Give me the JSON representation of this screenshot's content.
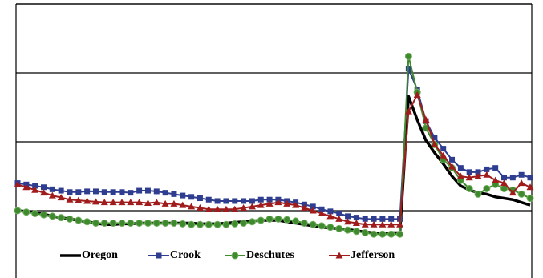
{
  "chart_data": {
    "type": "line",
    "categories": [
      null,
      null,
      null,
      null,
      null,
      null,
      null,
      null,
      null,
      null,
      null,
      null,
      null,
      null,
      null,
      null,
      null,
      null,
      null,
      null,
      null,
      null,
      null,
      null,
      null,
      null,
      null,
      null,
      null,
      null,
      null,
      null,
      null,
      null,
      null,
      null,
      null,
      null,
      null,
      null,
      null,
      null,
      null,
      null,
      null,
      null,
      null,
      null,
      null,
      null,
      null,
      null,
      null,
      null,
      null,
      null,
      null,
      null,
      null,
      null
    ],
    "ylim": [
      0,
      20
    ],
    "yticks": [
      0,
      5,
      10,
      15,
      20
    ],
    "grid": true,
    "legend": "bottom",
    "series": [
      {
        "name": "Oregon",
        "color": "#000000",
        "marker": "none",
        "values": [
          5.0,
          4.95,
          4.85,
          4.75,
          4.6,
          4.5,
          4.4,
          4.3,
          4.2,
          4.1,
          4.0,
          4.0,
          4.05,
          4.05,
          4.1,
          4.1,
          4.1,
          4.1,
          4.1,
          4.1,
          4.1,
          4.05,
          4.05,
          4.05,
          4.1,
          4.15,
          4.2,
          4.25,
          4.3,
          4.3,
          4.3,
          4.2,
          4.1,
          4.0,
          3.9,
          3.8,
          3.75,
          3.7,
          3.65,
          3.55,
          3.45,
          3.4,
          3.35,
          3.4,
          3.4,
          13.3,
          11.6,
          10.1,
          9.2,
          8.4,
          7.5,
          6.8,
          6.5,
          6.3,
          6.2,
          6.0,
          5.9,
          5.8,
          5.6,
          5.4
        ]
      },
      {
        "name": "Crook",
        "color": "#2e3d8f",
        "marker": "square",
        "values": [
          7.0,
          6.9,
          6.8,
          6.7,
          6.55,
          6.45,
          6.35,
          6.35,
          6.4,
          6.4,
          6.35,
          6.35,
          6.35,
          6.3,
          6.45,
          6.45,
          6.4,
          6.3,
          6.2,
          6.1,
          6.0,
          5.9,
          5.8,
          5.7,
          5.7,
          5.7,
          5.7,
          5.7,
          5.8,
          5.8,
          5.8,
          5.7,
          5.6,
          5.45,
          5.3,
          5.1,
          4.95,
          4.8,
          4.6,
          4.5,
          4.4,
          4.4,
          4.4,
          4.4,
          4.4,
          15.3,
          13.8,
          11.5,
          10.3,
          9.5,
          8.7,
          8.1,
          7.8,
          7.8,
          8.0,
          8.1,
          7.4,
          7.4,
          7.6,
          7.4
        ]
      },
      {
        "name": "Deschutes",
        "color": "#3f8a2e",
        "marker": "circle",
        "values": [
          5.0,
          4.9,
          4.8,
          4.7,
          4.6,
          4.5,
          4.4,
          4.3,
          4.2,
          4.1,
          4.1,
          4.1,
          4.1,
          4.1,
          4.1,
          4.1,
          4.1,
          4.1,
          4.1,
          4.05,
          4.0,
          4.0,
          4.0,
          4.0,
          4.0,
          4.05,
          4.1,
          4.2,
          4.3,
          4.4,
          4.4,
          4.35,
          4.25,
          4.1,
          4.0,
          3.9,
          3.8,
          3.7,
          3.6,
          3.5,
          3.4,
          3.3,
          3.3,
          3.3,
          3.3,
          16.2,
          13.6,
          11.0,
          9.8,
          8.7,
          8.1,
          7.2,
          6.6,
          6.2,
          6.6,
          6.9,
          6.6,
          6.5,
          6.2,
          5.9
        ]
      },
      {
        "name": "Jefferson",
        "color": "#a01c1c",
        "marker": "triangle",
        "values": [
          6.9,
          6.7,
          6.5,
          6.3,
          6.1,
          5.95,
          5.8,
          5.75,
          5.7,
          5.65,
          5.6,
          5.6,
          5.6,
          5.6,
          5.6,
          5.55,
          5.6,
          5.5,
          5.5,
          5.4,
          5.3,
          5.2,
          5.1,
          5.1,
          5.1,
          5.1,
          5.2,
          5.3,
          5.4,
          5.5,
          5.6,
          5.5,
          5.4,
          5.2,
          5.0,
          4.8,
          4.6,
          4.4,
          4.2,
          4.1,
          4.0,
          4.0,
          4.0,
          4.0,
          4.0,
          12.2,
          13.4,
          11.6,
          9.8,
          9.0,
          8.2,
          7.5,
          7.4,
          7.5,
          7.6,
          7.2,
          7.0,
          6.3,
          7.0,
          6.7
        ]
      }
    ]
  }
}
